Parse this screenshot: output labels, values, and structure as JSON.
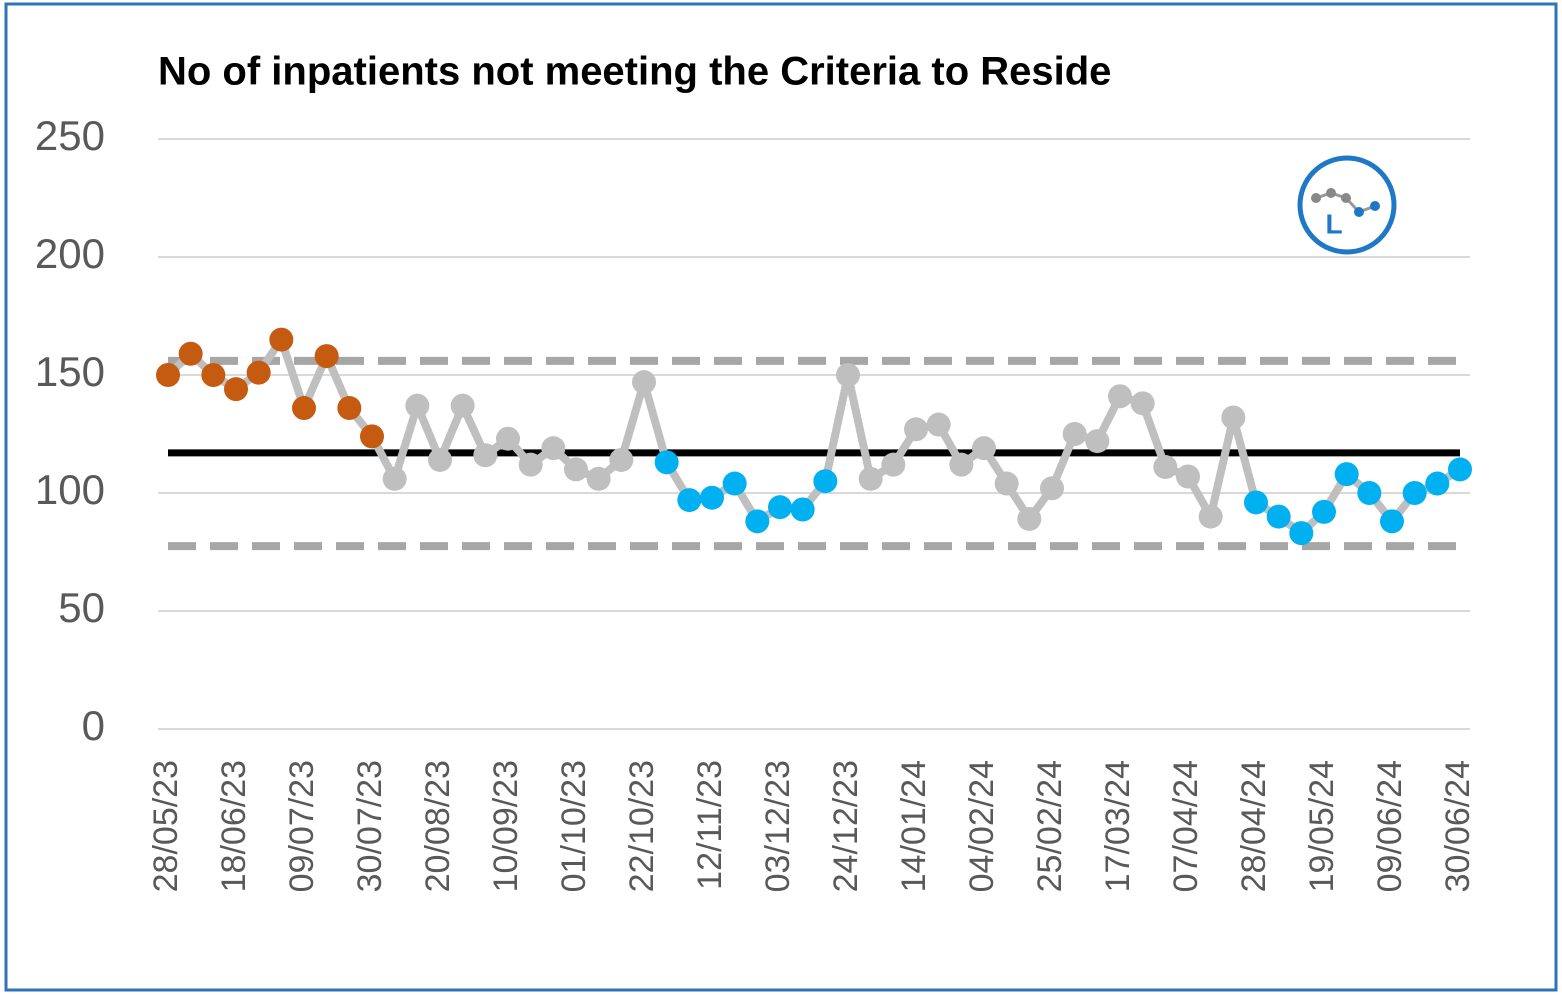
{
  "chart_data": {
    "type": "line",
    "title": "No of inpatients not meeting the Criteria to Reside",
    "icon_label": "L",
    "categories": [
      "28/05/23",
      null,
      null,
      "18/06/23",
      null,
      null,
      "09/07/23",
      null,
      null,
      "30/07/23",
      null,
      null,
      "20/08/23",
      null,
      null,
      "10/09/23",
      null,
      null,
      "01/10/23",
      null,
      null,
      "22/10/23",
      null,
      null,
      "12/11/23",
      null,
      null,
      "03/12/23",
      null,
      null,
      "24/12/23",
      null,
      null,
      "14/01/24",
      null,
      null,
      "04/02/24",
      null,
      null,
      "25/02/24",
      null,
      null,
      "17/03/24",
      null,
      null,
      "07/04/24",
      null,
      null,
      "28/04/24",
      null,
      null,
      "19/05/24",
      null,
      null,
      "09/06/24",
      null,
      null,
      "30/06/24"
    ],
    "series": [
      {
        "color": "#bfbfbf",
        "values": [
          150,
          159,
          150,
          144,
          151,
          165,
          136,
          158,
          136,
          124,
          106,
          137,
          114,
          137,
          116,
          123,
          112,
          119,
          110,
          106,
          114,
          147,
          113,
          97,
          98,
          104,
          88,
          94,
          93,
          105,
          150,
          106,
          112,
          127,
          129,
          112,
          119,
          104,
          89,
          102,
          125,
          122,
          141,
          138,
          111,
          107,
          90,
          132,
          96,
          90,
          83,
          92,
          108,
          100,
          88,
          100,
          104,
          110
        ],
        "point_colors": [
          "#c55a11",
          "#c55a11",
          "#c55a11",
          "#c55a11",
          "#c55a11",
          "#c55a11",
          "#c55a11",
          "#c55a11",
          "#c55a11",
          "#c55a11",
          "#bfbfbf",
          "#bfbfbf",
          "#bfbfbf",
          "#bfbfbf",
          "#bfbfbf",
          "#bfbfbf",
          "#bfbfbf",
          "#bfbfbf",
          "#bfbfbf",
          "#bfbfbf",
          "#bfbfbf",
          "#bfbfbf",
          "#00b0f0",
          "#00b0f0",
          "#00b0f0",
          "#00b0f0",
          "#00b0f0",
          "#00b0f0",
          "#00b0f0",
          "#00b0f0",
          "#bfbfbf",
          "#bfbfbf",
          "#bfbfbf",
          "#bfbfbf",
          "#bfbfbf",
          "#bfbfbf",
          "#bfbfbf",
          "#bfbfbf",
          "#bfbfbf",
          "#bfbfbf",
          "#bfbfbf",
          "#bfbfbf",
          "#bfbfbf",
          "#bfbfbf",
          "#bfbfbf",
          "#bfbfbf",
          "#bfbfbf",
          "#bfbfbf",
          "#00b0f0",
          "#00b0f0",
          "#00b0f0",
          "#00b0f0",
          "#00b0f0",
          "#00b0f0",
          "#00b0f0",
          "#00b0f0",
          "#00b0f0",
          "#00b0f0"
        ]
      }
    ],
    "mean": 117,
    "mean_color": "#000000",
    "ucl": 156,
    "lcl": 77.5,
    "limit_color": "#a6a6a6",
    "ylim": [
      0,
      250
    ],
    "yticks": [
      0,
      50,
      100,
      150,
      200,
      250
    ],
    "grid": true
  }
}
